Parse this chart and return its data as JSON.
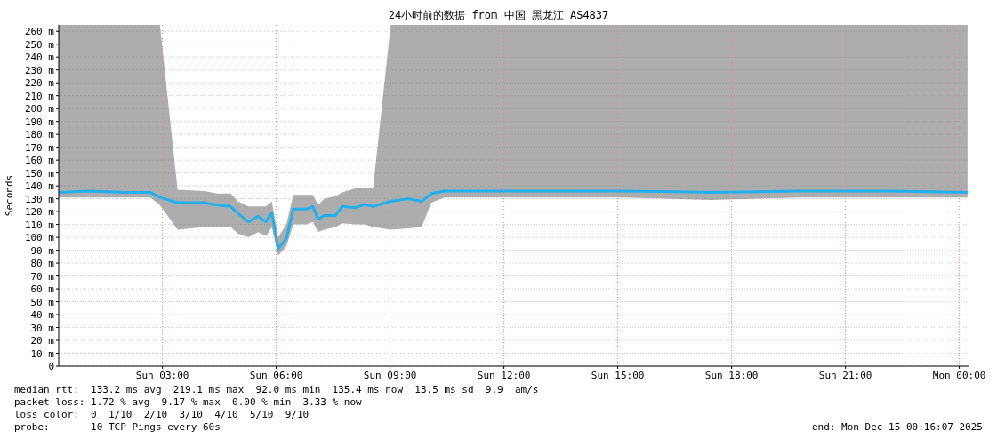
{
  "chart_data": {
    "type": "line",
    "title": "24小时前的数据 from 中国 黑龙江 AS4837",
    "ylabel": "Seconds",
    "xlim": [
      "2025-12-14T00:16",
      "2025-12-15T00:16"
    ],
    "ylim": [
      0,
      265
    ],
    "xticks": [
      {
        "value": "2025-12-14T03:00",
        "label": "Sun 03:00"
      },
      {
        "value": "2025-12-14T06:00",
        "label": "Sun 06:00"
      },
      {
        "value": "2025-12-14T09:00",
        "label": "Sun 09:00"
      },
      {
        "value": "2025-12-14T12:00",
        "label": "Sun 12:00"
      },
      {
        "value": "2025-12-14T15:00",
        "label": "Sun 15:00"
      },
      {
        "value": "2025-12-14T18:00",
        "label": "Sun 18:00"
      },
      {
        "value": "2025-12-14T21:00",
        "label": "Sun 21:00"
      },
      {
        "value": "2025-12-15T00:00",
        "label": "Mon 00:00"
      }
    ],
    "yticks": [
      0,
      {
        "value": 10,
        "label": "10 m"
      },
      {
        "value": 20,
        "label": "20 m"
      },
      {
        "value": 30,
        "label": "30 m"
      },
      {
        "value": 40,
        "label": "40 m"
      },
      {
        "value": 50,
        "label": "50 m"
      },
      {
        "value": 60,
        "label": "60 m"
      },
      {
        "value": 70,
        "label": "70 m"
      },
      {
        "value": 80,
        "label": "80 m"
      },
      {
        "value": 90,
        "label": "90 m"
      },
      {
        "value": 100,
        "label": "100 m"
      },
      {
        "value": 110,
        "label": "110 m"
      },
      {
        "value": 120,
        "label": "120 m"
      },
      {
        "value": 130,
        "label": "130 m"
      },
      {
        "value": 140,
        "label": "140 m"
      },
      {
        "value": 150,
        "label": "150 m"
      },
      {
        "value": 160,
        "label": "160 m"
      },
      {
        "value": 170,
        "label": "170 m"
      },
      {
        "value": 180,
        "label": "180 m"
      },
      {
        "value": 190,
        "label": "190 m"
      },
      {
        "value": 200,
        "label": "200 m"
      },
      {
        "value": 210,
        "label": "210 m"
      },
      {
        "value": 220,
        "label": "220 m"
      },
      {
        "value": 230,
        "label": "230 m"
      },
      {
        "value": 240,
        "label": "240 m"
      },
      {
        "value": 250,
        "label": "250 m"
      },
      {
        "value": 260,
        "label": "260 m"
      }
    ],
    "grid": true,
    "series": [
      {
        "color": "#20b0f0",
        "x": [
          "2025-12-14T00:16",
          "2025-12-14T01:03",
          "2025-12-14T01:59",
          "2025-12-14T02:41",
          "2025-12-14T02:56",
          "2025-12-14T03:24",
          "2025-12-14T04:06",
          "2025-12-14T04:27",
          "2025-12-14T04:48",
          "2025-12-14T04:59",
          "2025-12-14T05:16",
          "2025-12-14T05:31",
          "2025-12-14T05:44",
          "2025-12-14T05:53",
          "2025-12-14T06:03",
          "2025-12-14T06:16",
          "2025-12-14T06:27",
          "2025-12-14T06:48",
          "2025-12-14T06:58",
          "2025-12-14T07:06",
          "2025-12-14T07:16",
          "2025-12-14T07:34",
          "2025-12-14T07:44",
          "2025-12-14T08:05",
          "2025-12-14T08:19",
          "2025-12-14T08:33",
          "2025-12-14T09:01",
          "2025-12-14T09:29",
          "2025-12-14T09:50",
          "2025-12-14T10:05",
          "2025-12-14T10:26",
          "2025-12-14T12:46",
          "2025-12-14T15:07",
          "2025-12-14T17:28",
          "2025-12-14T19:48",
          "2025-12-14T22:09",
          "2025-12-15T00:13"
        ],
        "values": [
          135,
          136,
          135,
          135,
          131,
          127,
          127,
          125,
          124,
          119,
          112,
          116.5,
          112,
          119,
          91,
          99,
          122,
          122,
          124,
          114,
          117,
          117,
          124,
          123,
          125.5,
          124,
          128,
          130,
          128,
          134,
          136,
          136,
          136,
          135,
          136,
          136,
          135
        ],
        "lower": [
          131,
          131,
          131,
          131,
          125,
          106,
          108,
          108,
          108,
          103,
          100,
          104,
          101,
          108,
          86,
          93,
          110,
          110,
          112,
          104,
          106,
          108,
          111,
          110,
          110,
          108,
          106,
          107,
          108,
          127,
          131,
          131,
          131,
          129,
          131,
          131,
          131
        ],
        "upper": [
          265,
          265,
          265,
          265,
          265,
          137,
          136,
          134,
          134,
          128,
          124,
          124,
          124,
          128,
          100,
          110,
          133,
          133,
          133,
          125,
          130,
          132,
          135,
          138,
          138,
          138,
          265,
          265,
          265,
          265,
          265,
          265,
          265,
          265,
          265,
          265,
          265
        ]
      }
    ],
    "annotations": [
      "median rtt:  133.2 ms avg  219.1 ms max  92.0 ms min  135.4 ms now  13.5 ms sd  9.9  am/s",
      "packet loss: 1.72 % avg  9.17 % max  0.00 % min  3.33 % now",
      "loss color:  0  1/10  2/10  3/10  4/10  5/10  9/10",
      "probe:       10 TCP Pings every 60s",
      "end: Mon Dec 15 00:16:07 2025"
    ]
  }
}
